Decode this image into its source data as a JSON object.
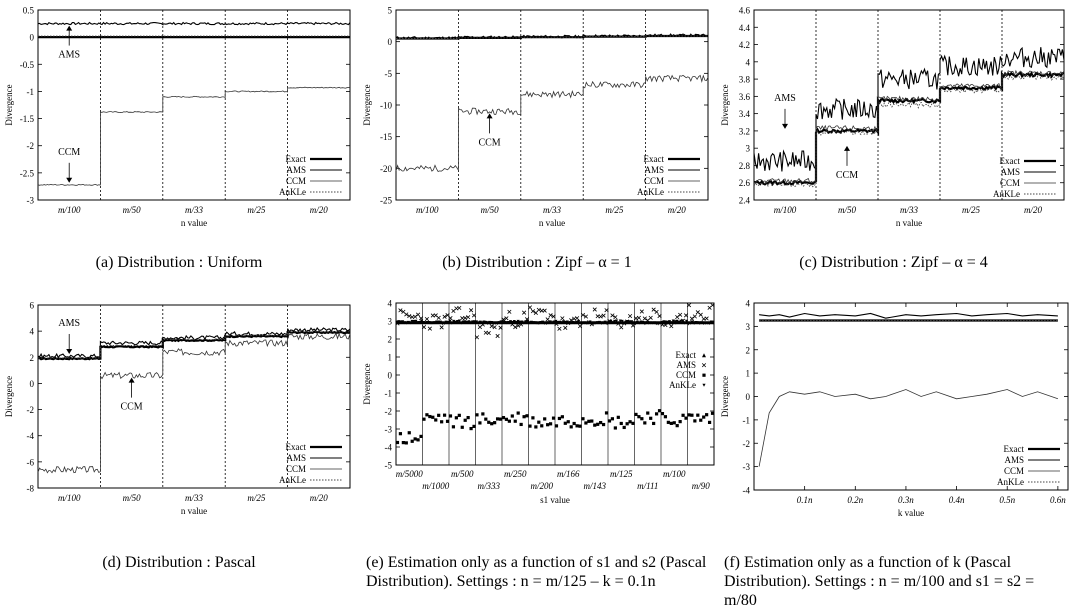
{
  "chart_data": [
    {
      "id": "a",
      "type": "line",
      "caption": "(a) Distribution : Uniform",
      "xlabel": "n value",
      "ylabel": "Divergence",
      "ylim": [
        -3,
        0.5
      ],
      "yticks": [
        "0.5",
        "0",
        "-0.5",
        "-1",
        "-1.5",
        "-2",
        "-2.5",
        "-3"
      ],
      "categories": [
        "m/100",
        "m/50",
        "m/33",
        "m/25",
        "m/20"
      ],
      "legend_position": "bottom-right",
      "series": [
        {
          "name": "Exact",
          "values": [
            0,
            0,
            0,
            0,
            0
          ]
        },
        {
          "name": "AMS",
          "values": [
            0.25,
            0.25,
            0.25,
            0.25,
            0.25
          ]
        },
        {
          "name": "CCM",
          "values": [
            -2.72,
            -1.38,
            -1.1,
            -1.0,
            -0.93
          ]
        },
        {
          "name": "AnKLe",
          "values": [
            0.02,
            0.02,
            0.02,
            0.02,
            0.02
          ]
        }
      ],
      "annotations": [
        {
          "text": "AMS",
          "x": "m/100",
          "y": 0.25
        },
        {
          "text": "CCM",
          "x": "m/100",
          "y": -2.72
        }
      ]
    },
    {
      "id": "b",
      "type": "line",
      "caption": "(b) Distribution : Zipf – α = 1",
      "xlabel": "n value",
      "ylabel": "Divergence",
      "ylim": [
        -25,
        5
      ],
      "yticks": [
        "5",
        "0",
        "-5",
        "-10",
        "-15",
        "-20",
        "-25"
      ],
      "categories": [
        "m/100",
        "m/50",
        "m/33",
        "m/25",
        "m/20"
      ],
      "legend_position": "bottom-right",
      "series": [
        {
          "name": "Exact",
          "values": [
            0.5,
            0.6,
            0.7,
            0.8,
            0.9
          ]
        },
        {
          "name": "AMS",
          "values": [
            0.6,
            0.7,
            0.8,
            0.9,
            1.0
          ]
        },
        {
          "name": "CCM",
          "values": [
            -20,
            -11,
            -8.3,
            -6.8,
            -5.8
          ]
        },
        {
          "name": "AnKLe",
          "values": [
            0.5,
            0.6,
            0.7,
            0.8,
            0.9
          ]
        }
      ],
      "annotations": [
        {
          "text": "CCM",
          "x": "m/50",
          "y": -11
        }
      ]
    },
    {
      "id": "c",
      "type": "line",
      "caption": "(c) Distribution : Zipf – α = 4",
      "xlabel": "n value",
      "ylabel": "Divergence",
      "ylim": [
        2.4,
        4.6
      ],
      "yticks": [
        "4.6",
        "4.4",
        "4.2",
        "4",
        "3.8",
        "3.6",
        "3.4",
        "3.2",
        "3",
        "2.8",
        "2.6",
        "2.4"
      ],
      "categories": [
        "m/100",
        "m/50",
        "m/33",
        "m/25",
        "m/20"
      ],
      "legend_position": "bottom-right",
      "series": [
        {
          "name": "Exact",
          "values": [
            2.6,
            3.2,
            3.55,
            3.7,
            3.85
          ]
        },
        {
          "name": "AMS",
          "values": [
            2.85,
            3.45,
            3.8,
            3.95,
            4.05
          ]
        },
        {
          "name": "CCM",
          "values": [
            2.62,
            3.23,
            3.57,
            3.72,
            3.87
          ]
        },
        {
          "name": "AnKLe",
          "values": [
            2.58,
            3.18,
            3.5,
            3.67,
            3.82
          ]
        }
      ],
      "annotations": [
        {
          "text": "AMS",
          "x": "m/100",
          "y": 3.2
        },
        {
          "text": "CCM",
          "x": "m/50",
          "y": 3.05
        }
      ]
    },
    {
      "id": "d",
      "type": "line",
      "caption": "(d) Distribution : Pascal",
      "xlabel": "n value",
      "ylabel": "Divergence",
      "ylim": [
        -8,
        6
      ],
      "yticks": [
        "6",
        "4",
        "2",
        "0",
        "-2",
        "-4",
        "-6",
        "-8"
      ],
      "categories": [
        "m/100",
        "m/50",
        "m/33",
        "m/25",
        "m/20"
      ],
      "legend_position": "bottom-right",
      "series": [
        {
          "name": "Exact",
          "values": [
            1.9,
            2.8,
            3.3,
            3.6,
            3.9
          ]
        },
        {
          "name": "AMS",
          "values": [
            2.1,
            3.1,
            3.5,
            3.8,
            4.1
          ]
        },
        {
          "name": "CCM",
          "values": [
            -6.6,
            0.6,
            2.4,
            3.1,
            3.6
          ]
        },
        {
          "name": "AnKLe",
          "values": [
            1.95,
            2.9,
            3.35,
            3.65,
            3.95
          ]
        }
      ],
      "annotations": [
        {
          "text": "AMS",
          "x": "m/100",
          "y": 2.1
        },
        {
          "text": "CCM",
          "x": "m/50",
          "y": 0.6
        }
      ]
    },
    {
      "id": "e",
      "type": "scatter",
      "caption": "(e) Estimation only as a function of s1 and s2 (Pascal Distribution). Settings : n = m/125 – k = 0.1n",
      "xlabel": "s1 value",
      "ylabel": "Divergence",
      "ylim": [
        -5,
        4
      ],
      "yticks": [
        "4",
        "3",
        "2",
        "1",
        "0",
        "-1",
        "-2",
        "-3",
        "-4",
        "-5"
      ],
      "categories_top": [
        "m/5000",
        "m/500",
        "m/250",
        "m/166",
        "m/125",
        "m/100"
      ],
      "categories_bottom": [
        "m/1000",
        "m/333",
        "m/200",
        "m/143",
        "m/111",
        "m/90"
      ],
      "legend_position": "right",
      "series": [
        {
          "name": "Exact",
          "values": [
            2.9,
            2.9,
            2.9,
            2.9,
            2.9,
            2.9,
            2.9,
            2.9,
            2.9,
            2.9,
            2.9,
            2.9
          ]
        },
        {
          "name": "AMS",
          "values": [
            3.2,
            3.0,
            3.3,
            2.5,
            3.1,
            3.4,
            2.8,
            3.2,
            3.0,
            3.3,
            2.9,
            3.5
          ]
        },
        {
          "name": "CCM",
          "values": [
            -3.5,
            -2.4,
            -2.6,
            -2.5,
            -2.4,
            -2.6,
            -2.5,
            -2.4,
            -2.6,
            -2.3,
            -2.5,
            -2.4
          ]
        },
        {
          "name": "AnKLe",
          "values": [
            2.95,
            2.9,
            2.95,
            2.9,
            2.95,
            2.9,
            2.95,
            2.9,
            2.95,
            2.9,
            2.95,
            2.9
          ]
        }
      ]
    },
    {
      "id": "f",
      "type": "line",
      "caption": "(f) Estimation only as a function of k (Pascal Distribution). Settings : n = m/100 and s1 = s2 = m/80",
      "caption_visible": "(f) Estimation only as a function of k (Pascal Distribution). Settings : n = m/100 and s1 = s2 = m/80",
      "xlabel": "k value",
      "ylabel": "Divergence",
      "ylim": [
        -4,
        4
      ],
      "yticks": [
        "4",
        "3",
        "2",
        "1",
        "0",
        "-1",
        "-2",
        "-3",
        "-4"
      ],
      "xticks": [
        "0.1n",
        "0.2n",
        "0.3n",
        "0.4n",
        "0.5n",
        "0.6n"
      ],
      "x": [
        0.01,
        0.03,
        0.05,
        0.07,
        0.1,
        0.13,
        0.16,
        0.2,
        0.23,
        0.26,
        0.3,
        0.33,
        0.36,
        0.4,
        0.43,
        0.46,
        0.5,
        0.53,
        0.56,
        0.6
      ],
      "legend_position": "bottom-right",
      "series": [
        {
          "name": "Exact",
          "values": [
            3.25,
            3.25,
            3.25,
            3.25,
            3.25,
            3.25,
            3.25,
            3.25,
            3.25,
            3.25,
            3.25,
            3.25,
            3.25,
            3.25,
            3.25,
            3.25,
            3.25,
            3.25,
            3.25,
            3.25
          ]
        },
        {
          "name": "AMS",
          "values": [
            3.5,
            3.45,
            3.5,
            3.4,
            3.55,
            3.45,
            3.5,
            3.45,
            3.55,
            3.35,
            3.5,
            3.45,
            3.5,
            3.55,
            3.45,
            3.5,
            3.55,
            3.45,
            3.5,
            3.45
          ]
        },
        {
          "name": "CCM",
          "values": [
            -3.0,
            -0.7,
            0.0,
            0.2,
            0.1,
            0.2,
            0.0,
            0.1,
            -0.1,
            0.0,
            0.3,
            0.0,
            0.2,
            -0.1,
            0.0,
            0.1,
            0.3,
            0.0,
            0.2,
            -0.1
          ]
        },
        {
          "name": "AnKLe",
          "values": [
            3.25,
            3.25,
            3.25,
            3.25,
            3.25,
            3.25,
            3.25,
            3.25,
            3.25,
            3.25,
            3.25,
            3.25,
            3.25,
            3.25,
            3.25,
            3.25,
            3.25,
            3.25,
            3.25,
            3.25
          ]
        }
      ]
    }
  ]
}
